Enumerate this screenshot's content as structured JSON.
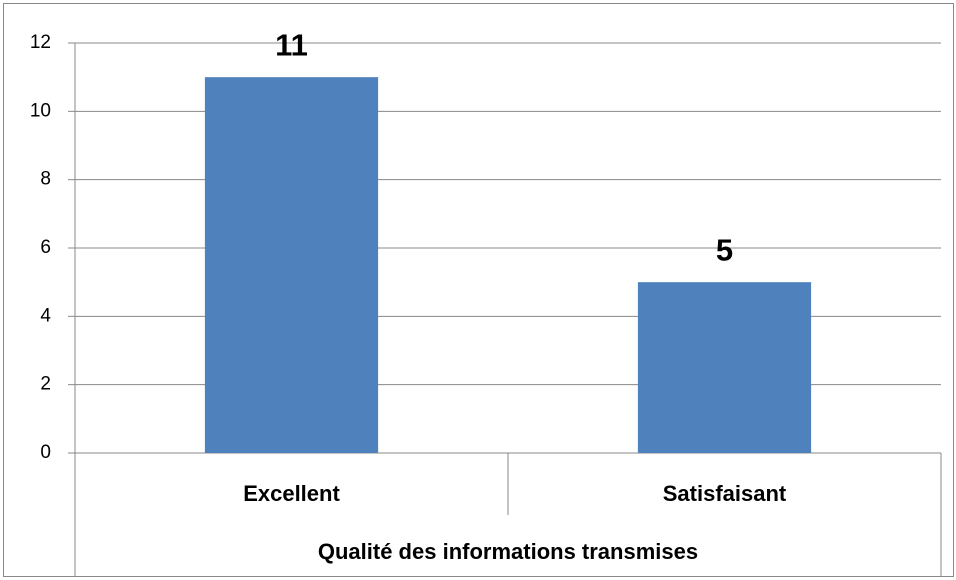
{
  "chart_data": {
    "type": "bar",
    "x_label": "Qualité des informations transmises",
    "categories": [
      "Excellent",
      "Satisfaisant"
    ],
    "values": [
      11,
      5
    ],
    "color": "#4f81bd",
    "ylim": [
      0,
      12
    ],
    "yticks": [
      0,
      2,
      4,
      6,
      8,
      10,
      12
    ],
    "grid": true,
    "data_labels": true
  }
}
